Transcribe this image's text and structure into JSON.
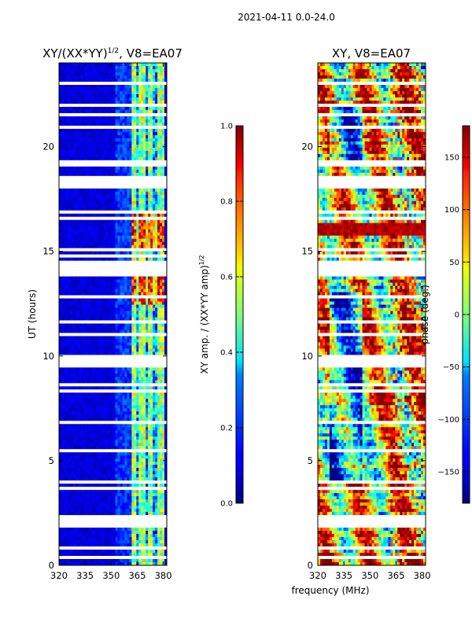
{
  "suptitle": "2021-04-11 0.0-24.0",
  "chart_data": [
    {
      "type": "heatmap",
      "title": "XY/(XX*YY)^{1/2}, V8=EA07",
      "title_main": "XY/(XX*YY)",
      "title_sup": "1/2",
      "title_tail": ", V8=EA07",
      "xlabel": "",
      "ylabel": "UT (hours)",
      "xlim": [
        320,
        382
      ],
      "ylim": [
        0,
        24
      ],
      "xticks": [
        320,
        335,
        350,
        365,
        380
      ],
      "yticks": [
        0,
        5,
        10,
        15,
        20
      ],
      "colorbar": {
        "label": "XY amp. / (XX*YY amp)^{1/2}",
        "label_main": "XY amp. / (XX*YY amp)",
        "label_sup": "1/2",
        "range": [
          0.0,
          1.0
        ],
        "ticks": [
          "0.0",
          "0.2",
          "0.4",
          "0.6",
          "0.8",
          "1.0"
        ]
      }
    },
    {
      "type": "heatmap",
      "title": "XY, V8=EA07",
      "xlabel": "frequency (MHz)",
      "ylabel": "",
      "xlim": [
        320,
        382
      ],
      "ylim": [
        0,
        24
      ],
      "xticks": [
        320,
        335,
        350,
        365,
        380
      ],
      "yticks": [
        0,
        5,
        10,
        15,
        20
      ],
      "colorbar": {
        "label": "phase (deg.)",
        "range": [
          -180,
          180
        ],
        "ticks": [
          "150",
          "100",
          "50",
          "0",
          "−50",
          "−100",
          "−150"
        ]
      }
    }
  ]
}
